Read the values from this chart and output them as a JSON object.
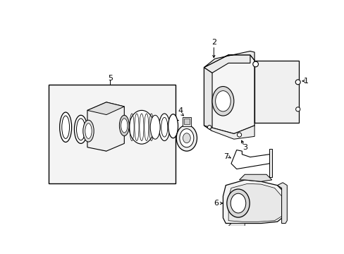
{
  "bg_color": "#ffffff",
  "line_color": "#000000",
  "gray_fill": "#f0f0f0",
  "box_bg": "#ebebeb"
}
